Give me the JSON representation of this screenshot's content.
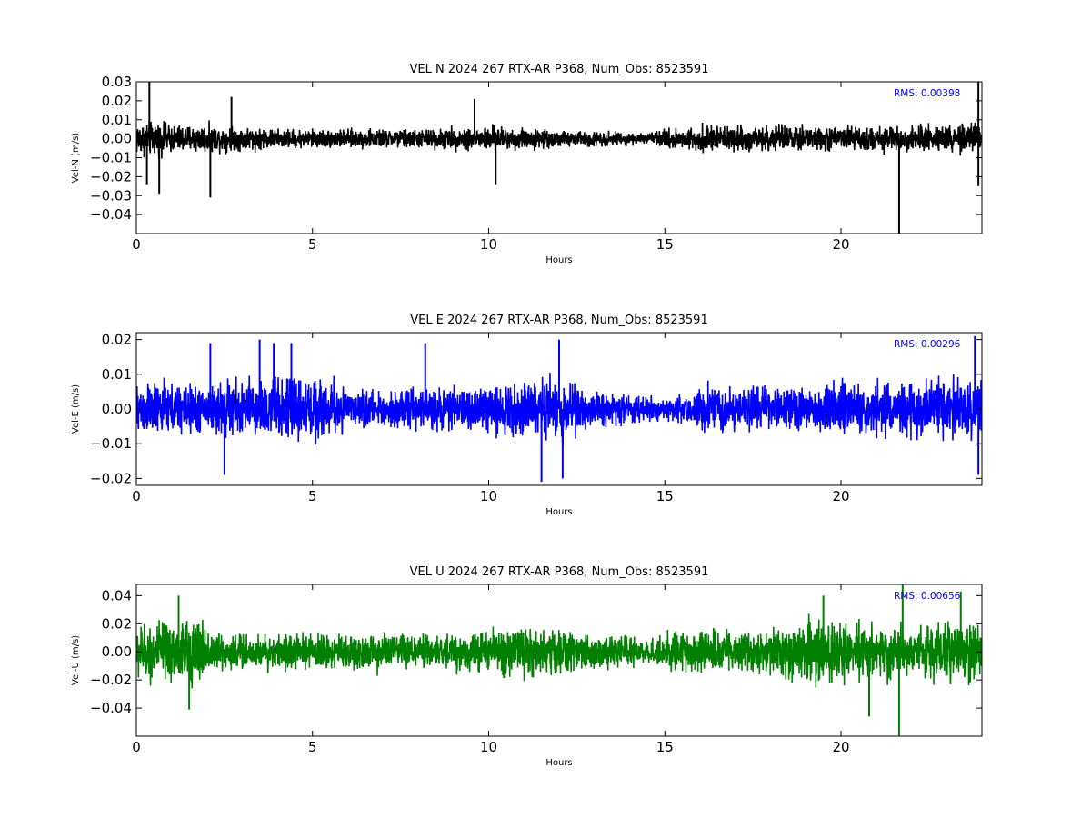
{
  "chart_data": [
    {
      "type": "line",
      "title": "VEL N 2024 267 RTX-AR  P368, Num_Obs: 8523591",
      "xlabel": "Hours",
      "ylabel": "Vel-N (m/s)",
      "xlim": [
        0,
        24
      ],
      "ylim": [
        -0.05,
        0.03
      ],
      "xticks": [
        0,
        5,
        10,
        15,
        20
      ],
      "xtick_labels": [
        "0",
        "5",
        "10",
        "15",
        "20"
      ],
      "yticks": [
        -0.04,
        -0.03,
        -0.02,
        -0.01,
        0.0,
        0.01,
        0.02,
        0.03
      ],
      "ytick_labels": [
        "−0.04",
        "−0.03",
        "−0.02",
        "−0.01",
        "0.00",
        "0.01",
        "0.02",
        "0.03"
      ],
      "rms_label": "RMS:  0.00398",
      "color": "#000000",
      "grid": false,
      "series": [
        {
          "noise_envelope": {
            "hours": [
              0,
              0.5,
              1,
              2,
              2.2,
              3,
              4,
              5,
              6,
              7,
              8,
              9,
              10,
              11,
              12,
              13,
              14,
              14.5,
              15,
              16,
              17,
              18,
              19,
              20,
              21,
              22,
              23,
              24
            ],
            "amplitude": [
              0.011,
              0.011,
              0.009,
              0.009,
              0.008,
              0.008,
              0.006,
              0.006,
              0.006,
              0.006,
              0.006,
              0.007,
              0.008,
              0.007,
              0.005,
              0.005,
              0.004,
              0.003,
              0.006,
              0.008,
              0.008,
              0.008,
              0.008,
              0.008,
              0.008,
              0.008,
              0.009,
              0.009
            ]
          },
          "spikes": [
            [
              0.37,
              0.031
            ],
            [
              0.3,
              -0.024
            ],
            [
              0.65,
              -0.029
            ],
            [
              2.1,
              -0.031
            ],
            [
              2.7,
              0.022
            ],
            [
              10.2,
              -0.024
            ],
            [
              9.6,
              0.021
            ],
            [
              21.65,
              -0.05
            ],
            [
              23.9,
              0.03
            ],
            [
              23.9,
              -0.025
            ]
          ]
        }
      ]
    },
    {
      "type": "line",
      "title": "VEL E 2024 267 RTX-AR  P368, Num_Obs: 8523591",
      "xlabel": "Hours",
      "ylabel": "Vel-E (m/s)",
      "xlim": [
        0,
        24
      ],
      "ylim": [
        -0.022,
        0.022
      ],
      "xticks": [
        0,
        5,
        10,
        15,
        20
      ],
      "xtick_labels": [
        "0",
        "5",
        "10",
        "15",
        "20"
      ],
      "yticks": [
        -0.02,
        -0.01,
        0.0,
        0.01,
        0.02
      ],
      "ytick_labels": [
        "−0.02",
        "−0.01",
        "0.00",
        "0.01",
        "0.02"
      ],
      "rms_label": "RMS:  0.00296",
      "color": "#0000ff",
      "grid": false,
      "series": [
        {
          "noise_envelope": {
            "hours": [
              0,
              1,
              2,
              2.5,
              3,
              4,
              5,
              5.9,
              6,
              7,
              8,
              9,
              10,
              11,
              11.5,
              12,
              12.5,
              13,
              14,
              15,
              15.5,
              16,
              17,
              18,
              19,
              20,
              21,
              22,
              23,
              24
            ],
            "amplitude": [
              0.009,
              0.009,
              0.008,
              0.01,
              0.01,
              0.011,
              0.011,
              0.009,
              0.006,
              0.006,
              0.007,
              0.007,
              0.008,
              0.009,
              0.011,
              0.011,
              0.008,
              0.006,
              0.005,
              0.004,
              0.005,
              0.008,
              0.008,
              0.007,
              0.007,
              0.009,
              0.009,
              0.01,
              0.01,
              0.011
            ]
          },
          "spikes": [
            [
              2.1,
              0.019
            ],
            [
              2.5,
              -0.019
            ],
            [
              3.5,
              0.02
            ],
            [
              3.9,
              0.019
            ],
            [
              4.4,
              0.019
            ],
            [
              8.2,
              0.019
            ],
            [
              11.5,
              -0.021
            ],
            [
              12.0,
              0.02
            ],
            [
              12.1,
              -0.02
            ],
            [
              23.8,
              0.021
            ],
            [
              23.9,
              -0.019
            ]
          ]
        }
      ]
    },
    {
      "type": "line",
      "title": "VEL U 2024 267 RTX-AR  P368, Num_Obs: 8523591",
      "xlabel": "Hours",
      "ylabel": "Vel-U (m/s)",
      "xlim": [
        0,
        24
      ],
      "ylim": [
        -0.06,
        0.048
      ],
      "xticks": [
        0,
        5,
        10,
        15,
        20
      ],
      "xtick_labels": [
        "0",
        "5",
        "10",
        "15",
        "20"
      ],
      "yticks": [
        -0.04,
        -0.02,
        0.0,
        0.02,
        0.04
      ],
      "ytick_labels": [
        "−0.04",
        "−0.02",
        "0.00",
        "0.02",
        "0.04"
      ],
      "rms_label": "RMS:  0.00656",
      "color": "#008000",
      "grid": false,
      "series": [
        {
          "noise_envelope": {
            "hours": [
              0,
              0.5,
              1,
              1.5,
              2,
              2.2,
              3,
              4,
              5,
              6,
              7,
              8,
              9,
              10,
              11,
              12,
              13,
              14,
              14.5,
              15,
              16,
              17,
              18,
              19,
              19.5,
              20,
              21,
              22,
              23,
              24
            ],
            "amplitude": [
              0.022,
              0.025,
              0.028,
              0.028,
              0.026,
              0.017,
              0.017,
              0.014,
              0.015,
              0.016,
              0.016,
              0.015,
              0.015,
              0.019,
              0.022,
              0.019,
              0.015,
              0.013,
              0.01,
              0.015,
              0.018,
              0.018,
              0.019,
              0.025,
              0.028,
              0.022,
              0.024,
              0.022,
              0.028,
              0.028
            ]
          },
          "spikes": [
            [
              1.2,
              0.04
            ],
            [
              1.5,
              -0.041
            ],
            [
              19.5,
              0.04
            ],
            [
              20.8,
              -0.046
            ],
            [
              21.65,
              -0.06
            ],
            [
              21.75,
              0.048
            ],
            [
              23.4,
              0.043
            ]
          ]
        }
      ]
    }
  ]
}
